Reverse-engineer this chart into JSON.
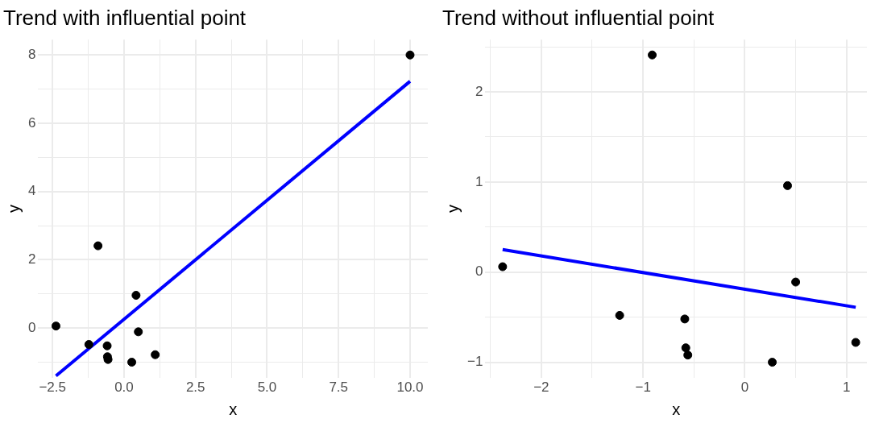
{
  "chart_data": [
    {
      "type": "scatter",
      "title": "Trend with influential point",
      "xlabel": "x",
      "ylabel": "y",
      "xlim": [
        -3.0,
        10.62
      ],
      "ylim": [
        -1.45,
        8.45
      ],
      "xticks": [
        {
          "value": -2.5,
          "label": "−2.5"
        },
        {
          "value": -1.25,
          "label": null
        },
        {
          "value": 0,
          "label": "0.0"
        },
        {
          "value": 1.25,
          "label": null
        },
        {
          "value": 2.5,
          "label": "2.5"
        },
        {
          "value": 3.75,
          "label": null
        },
        {
          "value": 5,
          "label": "5.0"
        },
        {
          "value": 6.25,
          "label": null
        },
        {
          "value": 7.5,
          "label": "7.5"
        },
        {
          "value": 8.75,
          "label": null
        },
        {
          "value": 10,
          "label": "10.0"
        }
      ],
      "yticks": [
        {
          "value": -1,
          "label": null
        },
        0,
        {
          "value": 1,
          "label": null
        },
        2,
        {
          "value": 3,
          "label": null
        },
        4,
        {
          "value": 5,
          "label": null
        },
        6,
        {
          "value": 7,
          "label": null
        },
        8
      ],
      "grid": true,
      "legend": false,
      "series": [
        {
          "marker": "circle",
          "color": "#000000",
          "x": [
            -2.38,
            -1.23,
            -0.91,
            -0.59,
            -0.58,
            -0.56,
            0.27,
            0.42,
            0.5,
            1.09,
            10
          ],
          "values": [
            0.06,
            -0.48,
            2.41,
            -0.52,
            -0.84,
            -0.92,
            -1.0,
            0.96,
            -0.11,
            -0.78,
            8
          ]
        },
        {
          "type": "line",
          "marker": "none",
          "color": "#0000ff",
          "x": [
            -2.38,
            10
          ],
          "values": [
            -1.4,
            7.23
          ]
        }
      ]
    },
    {
      "type": "scatter",
      "title": "Trend without influential point",
      "xlabel": "x",
      "ylabel": "y",
      "xlim": [
        -2.55,
        1.2
      ],
      "ylim": [
        -1.17,
        2.58
      ],
      "xticks": [
        {
          "value": -2.5,
          "label": null
        },
        {
          "value": -2,
          "label": "−2"
        },
        {
          "value": -1.5,
          "label": null
        },
        {
          "value": -1,
          "label": "−1"
        },
        {
          "value": -0.5,
          "label": null
        },
        0,
        {
          "value": 0.5,
          "label": null
        },
        1
      ],
      "yticks": [
        {
          "value": -1,
          "label": "−1"
        },
        {
          "value": -0.5,
          "label": null
        },
        0,
        {
          "value": 0.5,
          "label": null
        },
        1,
        {
          "value": 1.5,
          "label": null
        },
        2,
        {
          "value": 2.5,
          "label": null
        }
      ],
      "grid": true,
      "legend": false,
      "series": [
        {
          "marker": "circle",
          "color": "#000000",
          "x": [
            -2.38,
            -1.23,
            -0.91,
            -0.59,
            -0.58,
            -0.56,
            0.27,
            0.42,
            0.5,
            1.09
          ],
          "values": [
            0.06,
            -0.48,
            2.41,
            -0.52,
            -0.84,
            -0.92,
            -1.0,
            0.96,
            -0.11,
            -0.78
          ]
        },
        {
          "type": "line",
          "marker": "none",
          "color": "#0000ff",
          "x": [
            -2.38,
            1.09
          ],
          "values": [
            0.25,
            -0.39
          ]
        }
      ]
    }
  ]
}
